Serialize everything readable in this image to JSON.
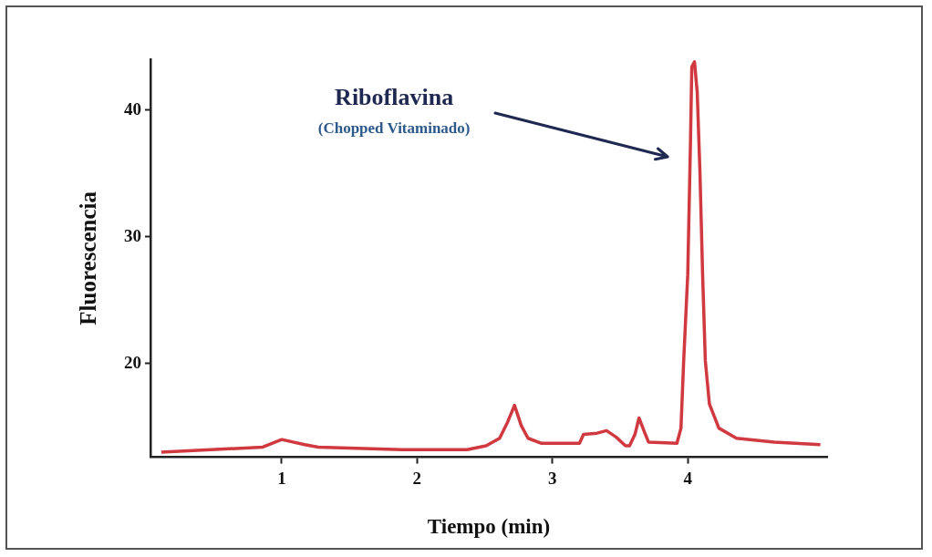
{
  "chart_data": {
    "type": "line",
    "xlabel": "Tiempo (min)",
    "ylabel": "Fluorescencia",
    "annotations": [
      "Riboflavina",
      "(Chopped Vitaminado)"
    ],
    "xlim": [
      0.03,
      5.03
    ],
    "xticks": [
      1,
      2,
      3,
      4
    ],
    "ylim": [
      12.6,
      44
    ],
    "yticks": [
      20,
      30,
      40
    ],
    "grid": false,
    "legend": false,
    "series": [
      {
        "color": "#d0393f",
        "x": [
          0.11,
          0.86,
          1.0,
          1.17,
          1.27,
          1.89,
          2.37,
          2.51,
          2.61,
          2.67,
          2.72,
          2.77,
          2.82,
          2.92,
          3.2,
          3.23,
          3.33,
          3.4,
          3.47,
          3.54,
          3.57,
          3.61,
          3.64,
          3.68,
          3.71,
          3.92,
          3.95,
          3.97,
          4.0,
          4.02,
          4.03,
          4.05,
          4.07,
          4.09,
          4.11,
          4.13,
          4.16,
          4.23,
          4.36,
          4.64,
          4.98
        ],
        "values": [
          13.0,
          13.4,
          14.0,
          13.6,
          13.4,
          13.2,
          13.2,
          13.5,
          14.1,
          15.4,
          16.7,
          15.1,
          14.1,
          13.7,
          13.7,
          14.4,
          14.5,
          14.7,
          14.2,
          13.5,
          13.5,
          14.4,
          15.7,
          14.6,
          13.8,
          13.7,
          14.9,
          20.2,
          27.0,
          37.3,
          43.4,
          43.8,
          41.4,
          35.2,
          27.0,
          20.2,
          16.8,
          14.9,
          14.1,
          13.8,
          13.6
        ]
      }
    ]
  }
}
